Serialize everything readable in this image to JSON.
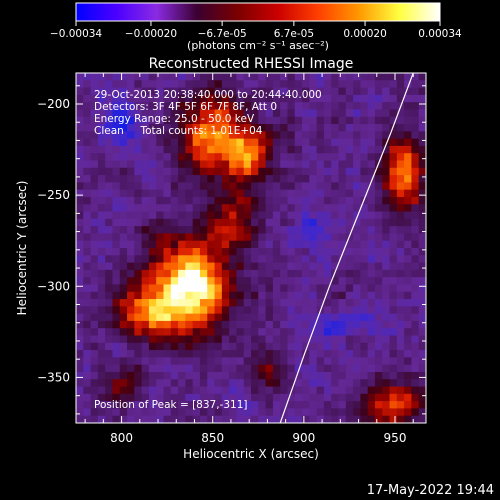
{
  "colorbar": {
    "ticks": [
      "-0.00034",
      "-0.00020",
      "-6.7e-05",
      "6.7e-05",
      "0.00020",
      "0.00034"
    ],
    "tick_values": [
      -0.00034,
      -0.0002,
      -6.7e-05,
      6.7e-05,
      0.0002,
      0.00034
    ],
    "range": [
      -0.00034,
      0.00034
    ],
    "unit_label": "(photons cm⁻² s⁻¹ asec⁻²)",
    "colors": [
      "#0000ff",
      "#4b00ff",
      "#8a2be2",
      "#3a0030",
      "#7a0000",
      "#cc0000",
      "#ff4000",
      "#ff9900",
      "#ffff40",
      "#ffffff"
    ]
  },
  "plot": {
    "title": "Reconstructed RHESSI Image",
    "info_lines": [
      "29-Oct-2013 20:38:40.000 to 20:44:40.000",
      "Detectors: 3F 4F 5F 6F 7F 8F, Att 0",
      "Energy Range: 25.0 - 50.0 keV",
      "Clean     Total counts: 1.01E+04"
    ],
    "peak_label": "Position of Peak = [837,-311]"
  },
  "timestamp": "17-May-2022 19:44",
  "chart_data": {
    "type": "heatmap",
    "title": "Reconstructed RHESSI Image",
    "xlabel": "Heliocentric X (arcsec)",
    "ylabel": "Heliocentric Y (arcsec)",
    "xlim": [
      775,
      967
    ],
    "ylim": [
      -375,
      -183
    ],
    "x_ticks": [
      800,
      850,
      900,
      950
    ],
    "y_ticks": [
      -200,
      -250,
      -300,
      -350
    ],
    "x_tick_labels": [
      "800",
      "850",
      "900",
      "950"
    ],
    "y_tick_labels": [
      "−200",
      "−250",
      "−300",
      "−350"
    ],
    "peak": {
      "x": 837,
      "y": -311
    },
    "limb": [
      [
        887,
        -375
      ],
      [
        900,
        -338
      ],
      [
        914,
        -300
      ],
      [
        930,
        -260
      ],
      [
        948,
        -215
      ],
      [
        960,
        -183
      ]
    ],
    "sources": [
      {
        "x": 838,
        "y": -300,
        "sx": 16,
        "sy": 18,
        "amp": 1.0
      },
      {
        "x": 812,
        "y": -315,
        "sx": 12,
        "sy": 10,
        "amp": 0.55
      },
      {
        "x": 850,
        "y": -215,
        "sx": 14,
        "sy": 16,
        "amp": 0.7
      },
      {
        "x": 870,
        "y": -228,
        "sx": 10,
        "sy": 10,
        "amp": 0.55
      },
      {
        "x": 862,
        "y": -262,
        "sx": 10,
        "sy": 12,
        "amp": 0.45
      },
      {
        "x": 955,
        "y": -238,
        "sx": 8,
        "sy": 16,
        "amp": 0.65
      },
      {
        "x": 950,
        "y": -365,
        "sx": 12,
        "sy": 9,
        "amp": 0.6
      },
      {
        "x": 800,
        "y": -355,
        "sx": 8,
        "sy": 8,
        "amp": 0.4
      },
      {
        "x": 880,
        "y": -345,
        "sx": 8,
        "sy": 8,
        "amp": 0.3
      }
    ],
    "cold_spots": [
      {
        "x": 800,
        "y": -210,
        "sx": 9,
        "sy": 9,
        "amp": 0.7
      },
      {
        "x": 920,
        "y": -320,
        "sx": 7,
        "sy": 7,
        "amp": 0.5
      },
      {
        "x": 905,
        "y": -268,
        "sx": 8,
        "sy": 6,
        "amp": 0.45
      }
    ]
  }
}
